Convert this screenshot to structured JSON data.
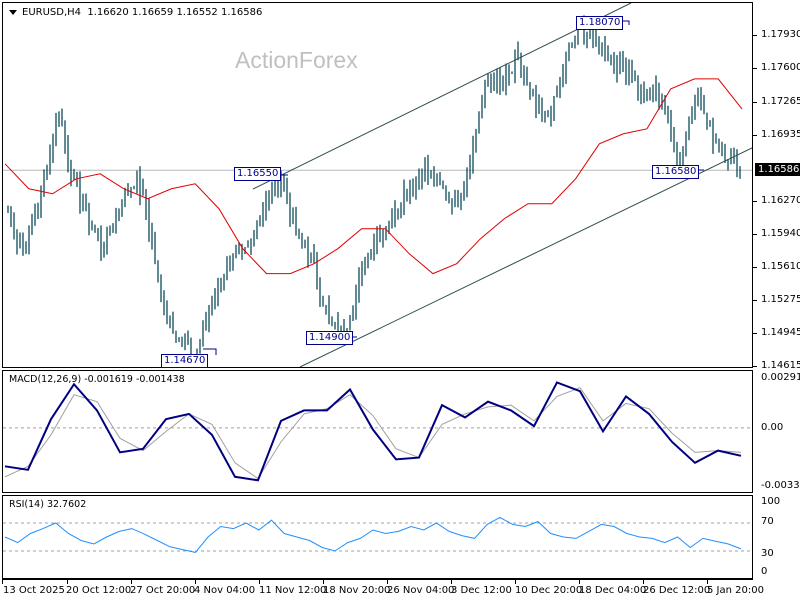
{
  "header": {
    "symbol": "EURUSD,H4",
    "ohlc": "1.16620 1.16659 1.16552 1.16586"
  },
  "watermark": "ActionForex",
  "price_axis": {
    "labels": [
      "1.17930",
      "1.17600",
      "1.17265",
      "1.16935",
      "1.16270",
      "1.15940",
      "1.15610",
      "1.15275",
      "1.14945",
      "1.14615"
    ],
    "current_price": "1.16586"
  },
  "levels": {
    "l1": "1.14670",
    "l2": "1.16550",
    "l3": "1.14900",
    "l4": "1.18070",
    "l5": "1.16580"
  },
  "macd": {
    "title": "MACD(12,26,9) -0.001619 -0.001438",
    "axis_top": "0.002913",
    "axis_zero": "0.00",
    "axis_bottom": "-0.003327"
  },
  "rsi": {
    "title": "RSI(14) 32.7602",
    "axis": [
      "100",
      "70",
      "30",
      "0"
    ]
  },
  "time_axis": [
    "13 Oct 2025",
    "20 Oct 12:00",
    "27 Oct 20:00",
    "4 Nov 04:00",
    "11 Nov 12:00",
    "18 Nov 20:00",
    "26 Nov 04:00",
    "3 Dec 12:00",
    "10 Dec 20:00",
    "18 Dec 04:00",
    "26 Dec 12:00",
    "5 Jan 20:00"
  ],
  "colors": {
    "bars": "#0d4a5c",
    "ma": "#e00000",
    "macd_main": "#000080",
    "macd_signal": "#a0a0a0",
    "rsi": "#1e90ff",
    "channel": "#2f4f4f",
    "label_border": "#00008b"
  },
  "chart_data": [
    {
      "type": "ohlc-bar",
      "title": "EURUSD,H4",
      "ohlc_last": {
        "open": 1.1662,
        "high": 1.16659,
        "low": 1.16552,
        "close": 1.16586
      },
      "ylim": [
        1.14615,
        1.1815
      ],
      "yticks": [
        1.1793,
        1.176,
        1.17265,
        1.16935,
        1.16586,
        1.1627,
        1.1594,
        1.1561,
        1.15275,
        1.14945,
        1.14615
      ],
      "x_labels": [
        "13 Oct 2025",
        "20 Oct 12:00",
        "27 Oct 20:00",
        "4 Nov 04:00",
        "11 Nov 12:00",
        "18 Nov 20:00",
        "26 Nov 04:00",
        "3 Dec 12:00",
        "10 Dec 20:00",
        "18 Dec 04:00",
        "26 Dec 12:00",
        "5 Jan 20:00"
      ],
      "close_path": [
        1.162,
        1.159,
        1.158,
        1.161,
        1.164,
        1.168,
        1.172,
        1.167,
        1.164,
        1.162,
        1.16,
        1.158,
        1.16,
        1.162,
        1.164,
        1.165,
        1.163,
        1.158,
        1.153,
        1.151,
        1.149,
        1.148,
        1.147,
        1.15,
        1.153,
        1.155,
        1.156,
        1.157,
        1.158,
        1.16,
        1.162,
        1.164,
        1.1655,
        1.162,
        1.159,
        1.158,
        1.156,
        1.153,
        1.15,
        1.1495,
        1.151,
        1.154,
        1.157,
        1.159,
        1.16,
        1.161,
        1.163,
        1.164,
        1.165,
        1.166,
        1.165,
        1.164,
        1.163,
        1.163,
        1.166,
        1.17,
        1.174,
        1.175,
        1.174,
        1.1755,
        1.177,
        1.174,
        1.172,
        1.171,
        1.172,
        1.175,
        1.178,
        1.18,
        1.1795,
        1.179,
        1.178,
        1.177,
        1.176,
        1.176,
        1.174,
        1.173,
        1.174,
        1.173,
        1.169,
        1.167,
        1.171,
        1.174,
        1.171,
        1.169,
        1.168,
        1.167,
        1.1659
      ],
      "moving_average": {
        "color": "red",
        "approx_path": [
          1.1665,
          1.164,
          1.1635,
          1.165,
          1.1655,
          1.164,
          1.163,
          1.164,
          1.1645,
          1.162,
          1.158,
          1.1555,
          1.1555,
          1.1565,
          1.158,
          1.16,
          1.16,
          1.1575,
          1.1555,
          1.1565,
          1.159,
          1.161,
          1.1625,
          1.1625,
          1.165,
          1.1685,
          1.1695,
          1.17,
          1.174,
          1.175,
          1.175,
          1.172
        ]
      },
      "annotations": [
        {
          "label": "1.14670",
          "type": "low"
        },
        {
          "label": "1.16550",
          "type": "high"
        },
        {
          "label": "1.14900",
          "type": "low"
        },
        {
          "label": "1.18070",
          "type": "high"
        },
        {
          "label": "1.16580",
          "type": "low"
        }
      ],
      "trend_channel": {
        "upper_from": [
          1.1655,
          "11 Nov"
        ],
        "upper_to": [
          1.1815,
          "26 Dec"
        ],
        "lower_from": [
          1.146,
          "14 Nov"
        ],
        "lower_to": [
          1.168,
          "7 Jan"
        ]
      }
    },
    {
      "type": "line",
      "title": "MACD(12,26,9) -0.001619 -0.001438",
      "ylim": [
        -0.003327,
        0.002913
      ],
      "series": [
        {
          "name": "MACD",
          "values": [
            -0.0022,
            -0.0024,
            0.0005,
            0.0025,
            0.001,
            -0.0014,
            -0.0012,
            0.0005,
            0.0008,
            -0.0004,
            -0.0028,
            -0.003,
            0.0004,
            0.001,
            0.001,
            0.0022,
            -0.0001,
            -0.0018,
            -0.0017,
            0.0013,
            0.0006,
            0.0015,
            0.001,
            0.0001,
            0.0026,
            0.0021,
            -0.0002,
            0.0018,
            0.0008,
            -0.0008,
            -0.002,
            -0.0013,
            -0.0016
          ]
        },
        {
          "name": "Signal",
          "values": [
            -0.0028,
            -0.0022,
            -0.0004,
            0.0019,
            0.0015,
            -0.0006,
            -0.0013,
            -0.0002,
            0.0008,
            0.0002,
            -0.002,
            -0.0029,
            -0.0008,
            0.0008,
            0.0011,
            0.0019,
            0.0007,
            -0.0012,
            -0.0017,
            0.0002,
            0.0008,
            0.0012,
            0.0013,
            0.0004,
            0.0018,
            0.0023,
            0.0004,
            0.0014,
            0.0011,
            -0.0003,
            -0.0014,
            -0.0013,
            -0.0014
          ]
        }
      ]
    },
    {
      "type": "line",
      "title": "RSI(14) 32.7602",
      "ylim": [
        0,
        100
      ],
      "levels": [
        70,
        30
      ],
      "series": [
        {
          "name": "RSI",
          "values": [
            50,
            42,
            55,
            62,
            70,
            55,
            45,
            40,
            50,
            58,
            62,
            54,
            45,
            36,
            32,
            28,
            50,
            65,
            62,
            70,
            60,
            74,
            55,
            50,
            45,
            35,
            30,
            42,
            48,
            60,
            55,
            58,
            65,
            60,
            70,
            58,
            52,
            48,
            68,
            78,
            68,
            65,
            72,
            55,
            50,
            48,
            58,
            68,
            65,
            55,
            50,
            48,
            42,
            50,
            35,
            48,
            44,
            40,
            33
          ]
        }
      ]
    }
  ]
}
